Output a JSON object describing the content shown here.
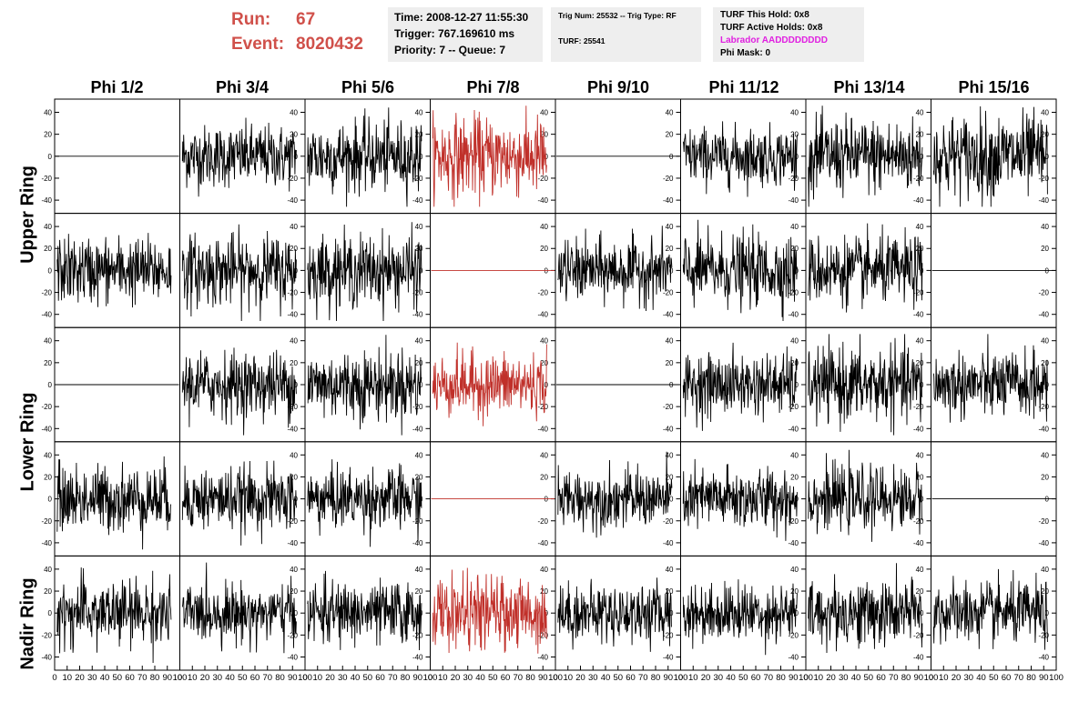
{
  "header": {
    "run_label": "Run:",
    "run_value": "67",
    "event_label": "Event:",
    "event_value": "8020432",
    "time": "Time: 2008-12-27 11:55:30",
    "trigger": "Trigger: 767.169610 ms",
    "priority": "Priority: 7 -- Queue: 7",
    "trig_num": "Trig Num: 25532 -- Trig Type: RF",
    "turf": "TURF: 25541",
    "turf_this_hold": "TURF This Hold: 0x8",
    "turf_active_holds": "TURF Active Holds: 0x8",
    "labrador": "Labrador AADDDDDDDD",
    "phi_mask": "Phi Mask: 0"
  },
  "columns": [
    "Phi 1/2",
    "Phi 3/4",
    "Phi 5/6",
    "Phi 7/8",
    "Phi 9/10",
    "Phi 11/12",
    "Phi 13/14",
    "Phi 15/16"
  ],
  "rows": [
    "Upper Ring",
    "Lower Ring",
    "Nadir Ring"
  ],
  "colors": {
    "trace": "#000000",
    "trigger_trace": "#c0302a",
    "run_text": "#d0504a",
    "labrador": "#e020e0"
  },
  "chart_data": {
    "type": "line",
    "xlim": [
      0,
      100
    ],
    "ylim": [
      -52,
      52
    ],
    "x_ticks": [
      0,
      10,
      20,
      30,
      40,
      50,
      60,
      70,
      80,
      90,
      100
    ],
    "y_ticks": [
      40,
      20,
      0,
      -20,
      -40
    ],
    "y_tick_labels": [
      "40",
      "20",
      "0",
      "-20",
      "-40"
    ],
    "x_tick_labels": [
      "0",
      "10",
      "20",
      "30",
      "40",
      "50",
      "60",
      "70",
      "80",
      "90",
      "100"
    ],
    "highlight_column": 3,
    "panels": [
      [
        {
          "amp": 0,
          "flat": true
        },
        {
          "amp": 14,
          "flat": false
        },
        {
          "amp": 16,
          "flat": false
        },
        {
          "amp": 18,
          "flat": false,
          "highlight": true
        },
        {
          "amp": 0,
          "flat": true
        },
        {
          "amp": 13,
          "flat": false
        },
        {
          "amp": 17,
          "flat": false
        },
        {
          "amp": 19,
          "flat": false
        }
      ],
      [
        {
          "amp": 15,
          "flat": false
        },
        {
          "amp": 16,
          "flat": false
        },
        {
          "amp": 16,
          "flat": false
        },
        {
          "amp": 0,
          "flat": true,
          "highlight": true
        },
        {
          "amp": 14,
          "flat": false
        },
        {
          "amp": 16,
          "flat": false
        },
        {
          "amp": 15,
          "flat": false
        },
        {
          "amp": 0,
          "flat": true
        }
      ],
      [
        {
          "amp": 0,
          "flat": true
        },
        {
          "amp": 15,
          "flat": false
        },
        {
          "amp": 16,
          "flat": false
        },
        {
          "amp": 14,
          "flat": false,
          "highlight": true
        },
        {
          "amp": 0,
          "flat": true
        },
        {
          "amp": 14,
          "flat": false
        },
        {
          "amp": 17,
          "flat": false
        },
        {
          "amp": 15,
          "flat": false
        }
      ],
      [
        {
          "amp": 15,
          "flat": false
        },
        {
          "amp": 14,
          "flat": false
        },
        {
          "amp": 14,
          "flat": false
        },
        {
          "amp": 0,
          "flat": true,
          "highlight": true
        },
        {
          "amp": 13,
          "flat": false
        },
        {
          "amp": 14,
          "flat": false
        },
        {
          "amp": 14,
          "flat": false
        },
        {
          "amp": 0,
          "flat": true
        }
      ],
      [
        {
          "amp": 15,
          "flat": false
        },
        {
          "amp": 13,
          "flat": false
        },
        {
          "amp": 14,
          "flat": false
        },
        {
          "amp": 16,
          "flat": false,
          "highlight": true
        },
        {
          "amp": 13,
          "flat": false
        },
        {
          "amp": 13,
          "flat": false
        },
        {
          "amp": 15,
          "flat": false
        },
        {
          "amp": 14,
          "flat": false
        }
      ]
    ]
  }
}
